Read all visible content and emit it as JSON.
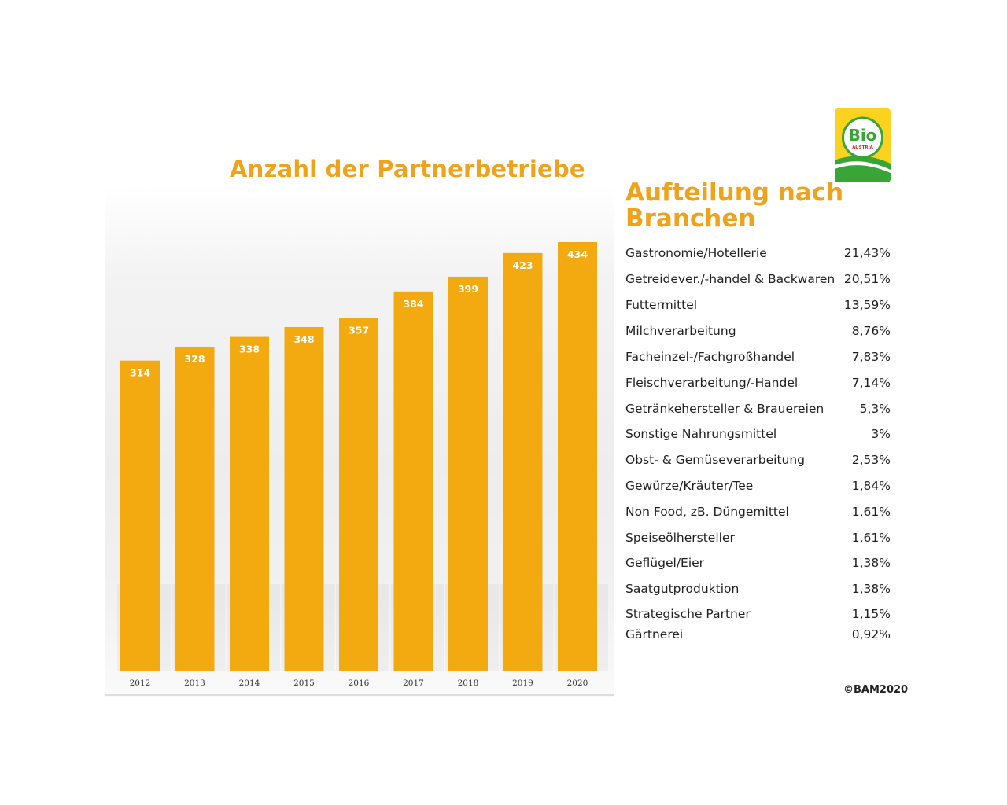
{
  "chart_data": {
    "type": "bar",
    "title": "Anzahl der Partnerbetriebe",
    "categories": [
      "2012",
      "2013",
      "2014",
      "2015",
      "2016",
      "2017",
      "2018",
      "2019",
      "2020"
    ],
    "values": [
      314,
      328,
      338,
      348,
      357,
      384,
      399,
      423,
      434
    ],
    "value_labels": true,
    "ylim": [
      0,
      434
    ],
    "grid": false,
    "bar_color": "#f3aa10",
    "label_color": "#ffffff"
  },
  "logo": {
    "text": "Bio",
    "subtext": "AUSTRIA",
    "colors": {
      "yellow": "#fbd21e",
      "green": "#3aa537",
      "red": "#d2232a"
    }
  },
  "side_panel": {
    "title": "Aufteilung nach Branchen",
    "accent_color": "#f0a21a",
    "items": [
      {
        "name": "Gastronomie/Hotellerie",
        "percent": "21,43%"
      },
      {
        "name": "Getreidever./-handel & Backwaren",
        "percent": "20,51%"
      },
      {
        "name": "Futtermittel",
        "percent": "13,59%"
      },
      {
        "name": "Milchverarbeitung",
        "percent": "8,76%"
      },
      {
        "name": "Facheinzel-/Fachgroßhandel",
        "percent": "7,83%"
      },
      {
        "name": "Fleischverarbeitung/-Handel",
        "percent": "7,14%"
      },
      {
        "name": "Getränkehersteller & Brauereien",
        "percent": "5,3%"
      },
      {
        "name": "Sonstige Nahrungsmittel",
        "percent": "3%"
      },
      {
        "name": "Obst- & Gemüseverarbeitung",
        "percent": "2,53%"
      },
      {
        "name": "Gewürze/Kräuter/Tee",
        "percent": "1,84%"
      },
      {
        "name": "Non Food, zB. Düngemittel",
        "percent": "1,61%"
      },
      {
        "name": "Speiseölhersteller",
        "percent": "1,61%"
      },
      {
        "name": "Geflügel/Eier",
        "percent": "1,38%"
      },
      {
        "name": "Saatgutproduktion",
        "percent": "1,38%"
      },
      {
        "name": "Strategische Partner",
        "percent": "1,15%"
      },
      {
        "name": "Gärtnerei",
        "percent": "0,92%"
      }
    ]
  },
  "footer": {
    "copyright": "©BAM2020"
  }
}
